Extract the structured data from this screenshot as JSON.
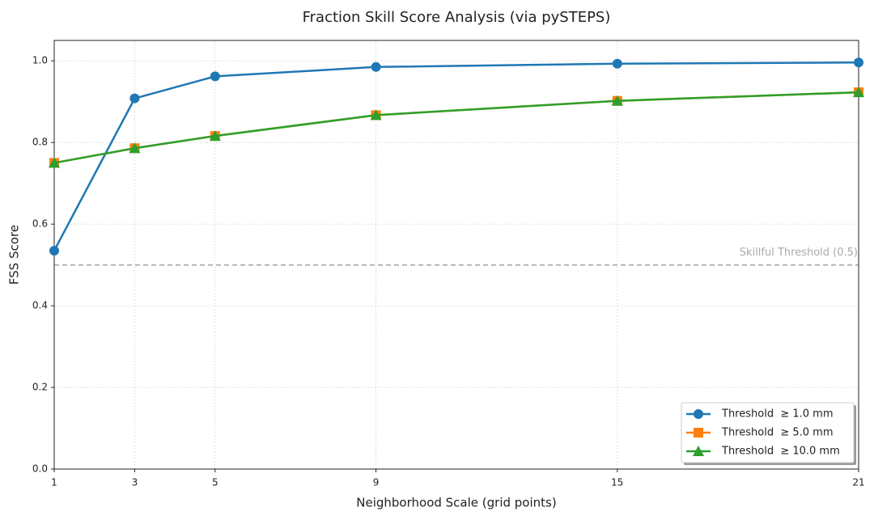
{
  "chart_data": {
    "type": "line",
    "title": "Fraction Skill Score Analysis (via pySTEPS)",
    "x_label": "Neighborhood Scale (grid points)",
    "y_label": "FSS Score",
    "x": [
      1,
      3,
      5,
      9,
      15,
      21
    ],
    "series": [
      {
        "name": "Threshold  ≥ 1.0 mm",
        "color": "#1f77b4",
        "marker": "circle",
        "values": [
          0.535,
          0.908,
          0.962,
          0.985,
          0.993,
          0.996
        ]
      },
      {
        "name": "Threshold  ≥ 5.0 mm",
        "color": "#ff7f0e",
        "marker": "square",
        "values": [
          0.75,
          0.786,
          0.816,
          0.867,
          0.902,
          0.923
        ]
      },
      {
        "name": "Threshold  ≥ 10.0 mm",
        "color": "#2ca02c",
        "marker": "triangle",
        "values": [
          0.75,
          0.786,
          0.816,
          0.867,
          0.902,
          0.923
        ]
      }
    ],
    "hline": {
      "value": 0.5,
      "label": "Skillful Threshold (0.5)",
      "color": "#aaaaaa"
    },
    "xlim": [
      1,
      21
    ],
    "ylim": [
      0,
      1.05
    ],
    "xticks": [
      1,
      3,
      5,
      9,
      15,
      21
    ],
    "yticks": [
      {
        "value": 0,
        "label": "0.0"
      },
      0.2,
      0.4,
      0.6,
      0.8,
      {
        "value": 1,
        "label": "1.0"
      }
    ],
    "grid": true,
    "legend": "lower right"
  }
}
